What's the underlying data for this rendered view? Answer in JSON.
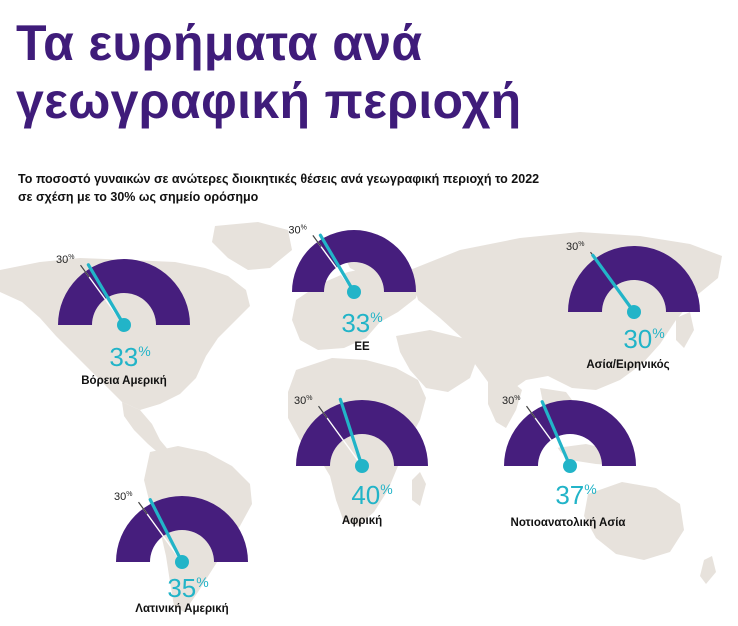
{
  "title_lines": [
    "Τα ευρήματα ανά",
    "γεωγραφική περιοχή"
  ],
  "subtitle_lines": [
    "Το ποσοστό γυναικών σε ανώτερες διοικητικές θέσεις ανά γεωγραφική περιοχή το 2022",
    "σε σχέση με το 30% ως σημείο ορόσημο"
  ],
  "colors": {
    "title": "#3f1c7a",
    "gauge": "#461e7d",
    "pointer": "#22b4c8",
    "map": "#e7e2dc",
    "value_text": "#22b4c8"
  },
  "chart_data": {
    "type": "gauge",
    "benchmark": 30,
    "benchmark_label": "30%",
    "scale": [
      0,
      100
    ],
    "regions": [
      {
        "name": "Βόρεια Αμερική",
        "value": 33,
        "value_label": "33%"
      },
      {
        "name": "ΕΕ",
        "value": 33,
        "value_label": "33%"
      },
      {
        "name": "Ασία/Ειρηνικός",
        "value": 30,
        "value_label": "30%"
      },
      {
        "name": "Αφρική",
        "value": 40,
        "value_label": "40%"
      },
      {
        "name": "Νοτιοανατολική Ασία",
        "value": 37,
        "value_label": "37%"
      },
      {
        "name": "Λατινική Αμερική",
        "value": 35,
        "value_label": "35%"
      }
    ]
  }
}
